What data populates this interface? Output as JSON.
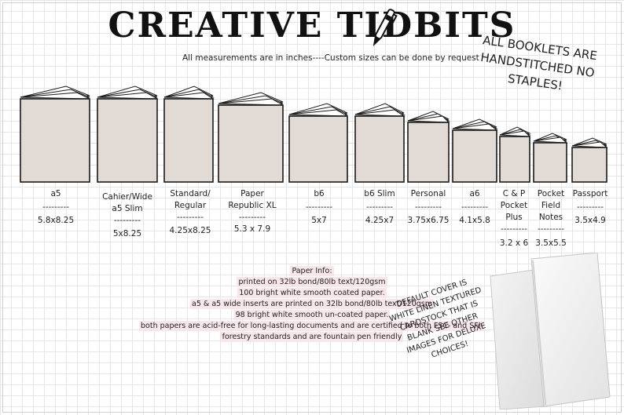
{
  "header": {
    "title": "CREATIVE TIDBITS",
    "subtitle": "All measurements are in inches----Custom sizes can be done by request"
  },
  "notice": {
    "lines": [
      "ALL BOOKLETS ARE",
      "HANDSTITCHED NO",
      "STAPLES!"
    ]
  },
  "sizes": [
    {
      "lines": [
        "a5",
        "---------",
        "5.8x8.25"
      ]
    },
    {
      "lines": [
        "Cahier/Wide",
        "a5 Slim",
        "---------",
        "5x8.25"
      ]
    },
    {
      "lines": [
        "Standard/",
        "Regular",
        "---------",
        "4.25x8.25"
      ]
    },
    {
      "lines": [
        "Paper",
        "Republic XL",
        "---------",
        "5.3 x 7.9"
      ]
    },
    {
      "lines": [
        "b6",
        "---------",
        "5x7"
      ]
    },
    {
      "lines": [
        "b6 Slim",
        "---------",
        "4.25x7"
      ]
    },
    {
      "lines": [
        "Personal",
        "---------",
        "3.75x6.75"
      ]
    },
    {
      "lines": [
        "a6",
        "---------",
        "4.1x5.8"
      ]
    },
    {
      "lines": [
        "C & P",
        "Pocket",
        "Plus",
        "---------",
        "3.2 x 6"
      ]
    },
    {
      "lines": [
        "Pocket",
        "Field",
        "Notes",
        "---------",
        "3.5x5.5"
      ]
    },
    {
      "lines": [
        "Passport",
        "---------",
        "3.5x4.9"
      ]
    }
  ],
  "paper_info": {
    "lines": [
      "Paper Info:",
      "printed on 32lb bond/80lb text/120gsm",
      "100 bright white smooth coated paper.",
      "a5 & a5 wide inserts are printed on 32lb bond/80lb text/120gsm",
      "98 bright white smooth un-coated paper.",
      "both papers are acid-free for long-lasting documents and are certified to both FSC- and SFI-",
      "forestry standards and are fountain pen friendly"
    ]
  },
  "cover_note": {
    "lines": [
      "DEFAULT COVER IS",
      "WHITE LINEN TEXTURED",
      "CARDSTOCK THAT IS",
      "BLANK SEE OTHER",
      "IMAGES FOR DELUXE",
      "CHOICES!"
    ]
  },
  "colors": {
    "cover": "#e2dad4",
    "outline": "#1a1a1a",
    "paper_highlight": "#f7e6ea"
  }
}
